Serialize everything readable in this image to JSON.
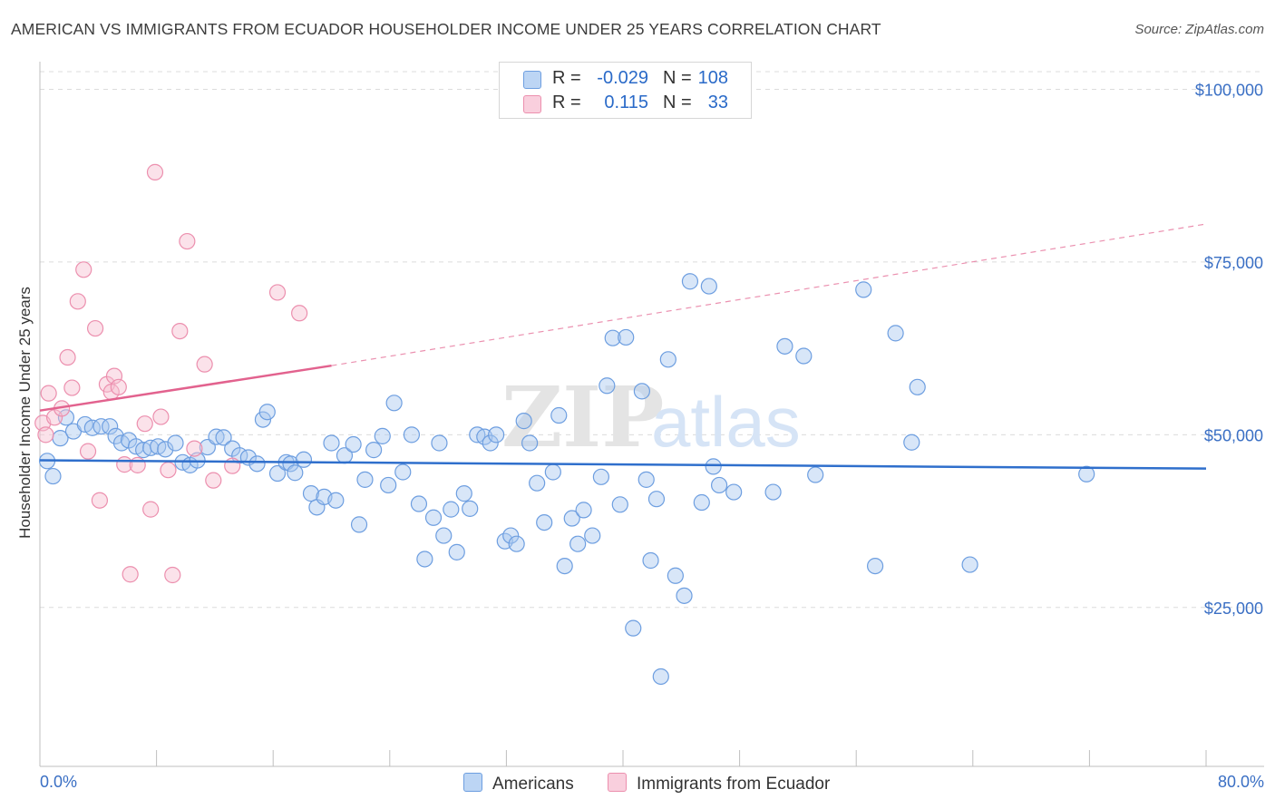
{
  "chart_data": {
    "type": "scatter",
    "title": "AMERICAN VS IMMIGRANTS FROM ECUADOR HOUSEHOLDER INCOME UNDER 25 YEARS CORRELATION CHART",
    "source": "Source: ZipAtlas.com",
    "xlabel": "",
    "ylabel": "Householder Income Under 25 years",
    "xlim": [
      0,
      80
    ],
    "ylim": [
      2000,
      104000
    ],
    "x_tick_labels": [
      "0.0%",
      "80.0%"
    ],
    "y_ticks": [
      {
        "value": 25000,
        "label": "$25,000"
      },
      {
        "value": 50000,
        "label": "$50,000"
      },
      {
        "value": 75000,
        "label": "$75,000"
      },
      {
        "value": 100000,
        "label": "$100,000"
      }
    ],
    "watermark": "ZIPatlas",
    "legend": [
      {
        "name": "Americans",
        "r_label": "R =",
        "r": "-0.029",
        "n_label": "N =",
        "n": "108",
        "color": "#a9c8f0",
        "stroke": "#6d9ee0"
      },
      {
        "name": "Immigrants from Ecuador",
        "r_label": "R =",
        "r": "0.115",
        "n_label": "N =",
        "n": "33",
        "color": "#f7bfd1",
        "stroke": "#ec8fae"
      }
    ],
    "series": [
      {
        "name": "Americans",
        "color": "#a9c8f0",
        "stroke": "#6d9ee0",
        "trend": {
          "x0": 0,
          "y0": 46300,
          "x1": 80,
          "y1": 45100,
          "color": "#2f6fcc"
        },
        "points": [
          [
            0.5,
            46200
          ],
          [
            0.9,
            44000
          ],
          [
            1.4,
            49500
          ],
          [
            1.8,
            52500
          ],
          [
            2.3,
            50500
          ],
          [
            3.1,
            51500
          ],
          [
            3.6,
            51000
          ],
          [
            4.2,
            51200
          ],
          [
            4.8,
            51200
          ],
          [
            5.2,
            49800
          ],
          [
            5.6,
            48800
          ],
          [
            6.1,
            49200
          ],
          [
            6.6,
            48300
          ],
          [
            7.1,
            47800
          ],
          [
            7.6,
            48100
          ],
          [
            8.1,
            48300
          ],
          [
            8.6,
            47900
          ],
          [
            9.3,
            48800
          ],
          [
            9.8,
            46000
          ],
          [
            10.3,
            45600
          ],
          [
            10.8,
            46300
          ],
          [
            11.5,
            48200
          ],
          [
            12.1,
            49700
          ],
          [
            12.6,
            49600
          ],
          [
            13.2,
            48000
          ],
          [
            13.7,
            47000
          ],
          [
            14.3,
            46700
          ],
          [
            14.9,
            45800
          ],
          [
            15.3,
            52200
          ],
          [
            15.6,
            53300
          ],
          [
            16.3,
            44400
          ],
          [
            16.9,
            46000
          ],
          [
            17.2,
            45800
          ],
          [
            17.5,
            44500
          ],
          [
            18.1,
            46400
          ],
          [
            18.6,
            41500
          ],
          [
            19.0,
            39500
          ],
          [
            19.5,
            41000
          ],
          [
            20.0,
            48800
          ],
          [
            20.3,
            40500
          ],
          [
            20.9,
            47000
          ],
          [
            21.5,
            48600
          ],
          [
            21.9,
            37000
          ],
          [
            22.3,
            43500
          ],
          [
            22.9,
            47800
          ],
          [
            23.5,
            49800
          ],
          [
            23.9,
            42700
          ],
          [
            24.3,
            54600
          ],
          [
            24.9,
            44600
          ],
          [
            25.5,
            50000
          ],
          [
            26.0,
            40000
          ],
          [
            26.4,
            32000
          ],
          [
            27.0,
            38000
          ],
          [
            27.4,
            48800
          ],
          [
            27.7,
            35400
          ],
          [
            28.2,
            39200
          ],
          [
            28.6,
            33000
          ],
          [
            29.1,
            41500
          ],
          [
            29.5,
            39300
          ],
          [
            30.0,
            50000
          ],
          [
            30.5,
            49700
          ],
          [
            30.9,
            48800
          ],
          [
            31.3,
            50000
          ],
          [
            31.9,
            34600
          ],
          [
            32.3,
            35400
          ],
          [
            32.7,
            34200
          ],
          [
            33.2,
            52000
          ],
          [
            33.6,
            48800
          ],
          [
            34.1,
            43000
          ],
          [
            34.6,
            37300
          ],
          [
            35.2,
            44600
          ],
          [
            35.6,
            52800
          ],
          [
            36.0,
            31000
          ],
          [
            36.5,
            37900
          ],
          [
            36.9,
            34200
          ],
          [
            37.3,
            39100
          ],
          [
            37.9,
            35400
          ],
          [
            38.5,
            43900
          ],
          [
            38.9,
            57100
          ],
          [
            39.3,
            64000
          ],
          [
            39.8,
            39900
          ],
          [
            40.2,
            64100
          ],
          [
            40.7,
            22000
          ],
          [
            41.3,
            56300
          ],
          [
            41.6,
            43500
          ],
          [
            41.9,
            31800
          ],
          [
            42.3,
            40700
          ],
          [
            43.1,
            60900
          ],
          [
            43.6,
            29600
          ],
          [
            44.2,
            26700
          ],
          [
            44.6,
            72200
          ],
          [
            45.4,
            40200
          ],
          [
            45.9,
            71500
          ],
          [
            46.2,
            45400
          ],
          [
            46.6,
            42700
          ],
          [
            47.6,
            41700
          ],
          [
            50.3,
            41700
          ],
          [
            51.1,
            62800
          ],
          [
            52.4,
            61400
          ],
          [
            53.2,
            44200
          ],
          [
            56.5,
            71000
          ],
          [
            57.3,
            31000
          ],
          [
            58.7,
            64700
          ],
          [
            59.8,
            48900
          ],
          [
            60.2,
            56900
          ],
          [
            71.8,
            44300
          ],
          [
            63.8,
            31200
          ],
          [
            42.6,
            15000
          ]
        ]
      },
      {
        "name": "Immigrants from Ecuador",
        "color": "#f7bfd1",
        "stroke": "#ec8fae",
        "trend": {
          "x0": 0,
          "y0": 53500,
          "x1": 20,
          "y1": 60000,
          "dash_x1": 80,
          "dash_y1": 80500,
          "color": "#e2628e"
        },
        "points": [
          [
            0.2,
            51700
          ],
          [
            0.4,
            50000
          ],
          [
            0.6,
            56000
          ],
          [
            1.0,
            52500
          ],
          [
            1.5,
            53800
          ],
          [
            1.9,
            61200
          ],
          [
            2.2,
            56800
          ],
          [
            2.6,
            69300
          ],
          [
            3.0,
            73900
          ],
          [
            3.3,
            47600
          ],
          [
            3.8,
            65400
          ],
          [
            4.1,
            40500
          ],
          [
            4.6,
            57300
          ],
          [
            4.9,
            56200
          ],
          [
            5.1,
            58500
          ],
          [
            5.4,
            56900
          ],
          [
            5.8,
            45700
          ],
          [
            6.2,
            29800
          ],
          [
            6.7,
            45600
          ],
          [
            7.2,
            51600
          ],
          [
            7.6,
            39200
          ],
          [
            7.9,
            88000
          ],
          [
            8.3,
            52600
          ],
          [
            8.8,
            44900
          ],
          [
            9.1,
            29700
          ],
          [
            9.6,
            65000
          ],
          [
            10.1,
            78000
          ],
          [
            10.6,
            48000
          ],
          [
            11.3,
            60200
          ],
          [
            11.9,
            43400
          ],
          [
            13.2,
            45500
          ],
          [
            16.3,
            70600
          ],
          [
            17.8,
            67600
          ]
        ]
      }
    ]
  }
}
